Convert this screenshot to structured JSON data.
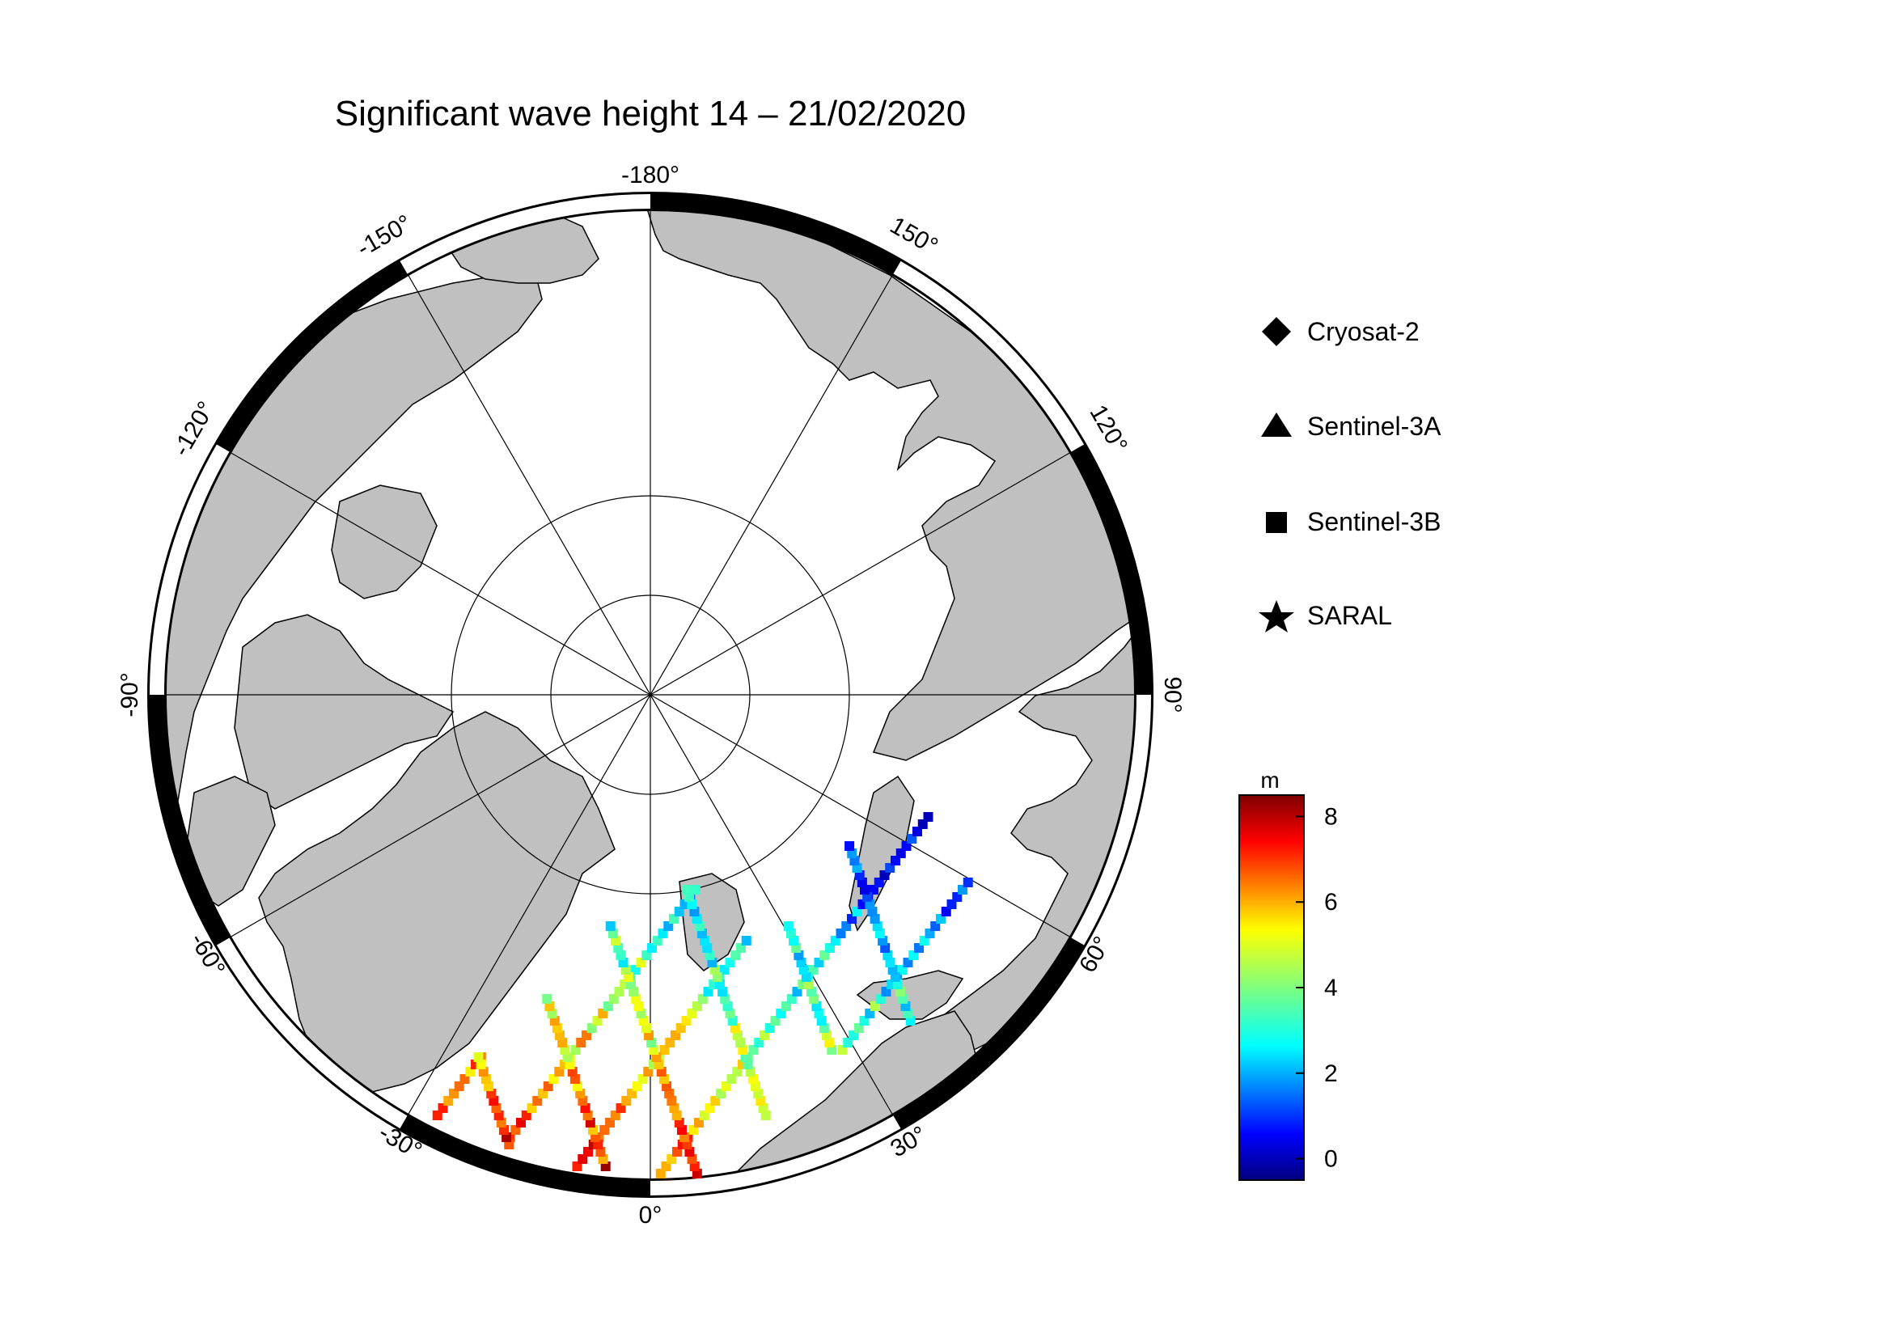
{
  "title": "Significant wave height 14 – 21/02/2020",
  "map": {
    "projection": "north-polar-stereographic",
    "land_color": "#c0c0c0",
    "ocean_color": "#ffffff",
    "longitude_labels": [
      "-180°",
      "150°",
      "120°",
      "90°",
      "60°",
      "30°",
      "0°",
      "-30°",
      "-60°",
      "-90°",
      "-120°",
      "-150°"
    ]
  },
  "legend": {
    "items": [
      {
        "label": "Cryosat-2",
        "symbol": "diamond-icon"
      },
      {
        "label": "Sentinel-3A",
        "symbol": "triangle-icon"
      },
      {
        "label": "Sentinel-3B",
        "symbol": "square-icon"
      },
      {
        "label": "SARAL",
        "symbol": "star-icon"
      }
    ]
  },
  "colorbar": {
    "unit": "m",
    "min": -0.5,
    "max": 8.5,
    "ticks": [
      "0",
      "2",
      "4",
      "6",
      "8"
    ],
    "colormap": "jet"
  }
}
